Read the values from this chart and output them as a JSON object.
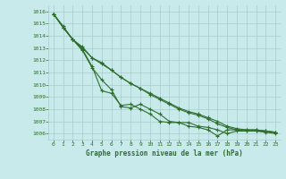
{
  "bg_color": "#c8eaea",
  "grid_color": "#a8cccc",
  "line_color": "#2d6e2d",
  "marker_color": "#2d6e2d",
  "xlabel": "Graphe pression niveau de la mer (hPa)",
  "xlabel_color": "#2d6e2d",
  "tick_color": "#2d6e2d",
  "ylim": [
    1005.5,
    1016.5
  ],
  "xlim": [
    -0.5,
    23.5
  ],
  "yticks": [
    1006,
    1007,
    1008,
    1009,
    1010,
    1011,
    1012,
    1013,
    1014,
    1015,
    1016
  ],
  "xticks": [
    0,
    1,
    2,
    3,
    4,
    5,
    6,
    7,
    8,
    9,
    10,
    11,
    12,
    13,
    14,
    15,
    16,
    17,
    18,
    19,
    20,
    21,
    22,
    23
  ],
  "series": [
    [
      1015.8,
      1014.8,
      1013.7,
      1012.8,
      1011.4,
      1010.4,
      1009.6,
      1008.2,
      1008.1,
      1008.4,
      1008.0,
      1007.6,
      1007.0,
      1006.9,
      1006.9,
      1006.6,
      1006.5,
      1006.3,
      1006.0,
      1006.2,
      1006.2,
      1006.2,
      1006.2,
      1006.1
    ],
    [
      1015.8,
      1014.7,
      1013.7,
      1013.1,
      1012.2,
      1011.8,
      1011.2,
      1010.6,
      1010.1,
      1009.7,
      1009.2,
      1008.8,
      1008.4,
      1008.0,
      1007.7,
      1007.5,
      1007.2,
      1006.8,
      1006.5,
      1006.3,
      1006.2,
      1006.2,
      1006.1,
      1006.0
    ],
    [
      1015.8,
      1014.7,
      1013.7,
      1013.0,
      1012.2,
      1011.7,
      1011.2,
      1010.6,
      1010.1,
      1009.7,
      1009.3,
      1008.9,
      1008.5,
      1008.1,
      1007.8,
      1007.6,
      1007.3,
      1007.0,
      1006.6,
      1006.4,
      1006.3,
      1006.3,
      1006.2,
      1006.1
    ],
    [
      1015.8,
      1014.7,
      1013.7,
      1012.9,
      1011.5,
      1009.5,
      1009.3,
      1008.3,
      1008.4,
      1008.0,
      1007.6,
      1007.0,
      1006.9,
      1006.9,
      1006.6,
      1006.5,
      1006.3,
      1005.8,
      1006.3,
      1006.3,
      1006.3,
      1006.3,
      1006.2,
      1006.1
    ]
  ]
}
